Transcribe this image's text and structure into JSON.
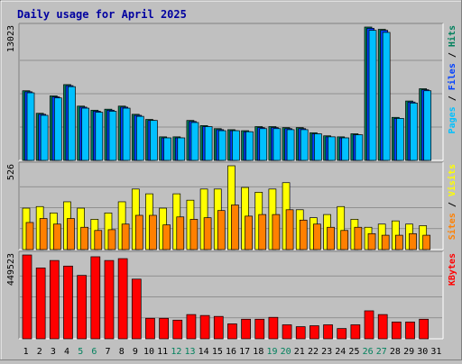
{
  "title": "Daily usage for April 2025",
  "colors": {
    "background": "#c0c0c0",
    "plot_background": "#c0c0c0",
    "title": "#0000a0",
    "hits": "#00805c",
    "files": "#0040ff",
    "pages": "#00c0ff",
    "visits": "#ffff00",
    "sites": "#ff8000",
    "kbytes": "#ff0000",
    "weekend": "#00805c",
    "weekday": "#000000"
  },
  "chart_data": {
    "type": "bar",
    "title": "Daily usage for April 2025",
    "categories": [
      "1",
      "2",
      "3",
      "4",
      "5",
      "6",
      "7",
      "8",
      "9",
      "10",
      "11",
      "12",
      "13",
      "14",
      "15",
      "16",
      "17",
      "18",
      "19",
      "20",
      "21",
      "22",
      "23",
      "24",
      "25",
      "26",
      "27",
      "28",
      "29",
      "30",
      "31"
    ],
    "weekend_days": [
      5,
      6,
      12,
      13,
      19,
      20,
      26,
      27
    ],
    "panels": [
      {
        "name": "hits-files-pages",
        "max_label": "13023",
        "ymax": 13023,
        "axis_label_parts": [
          {
            "text": "Pages",
            "color": "#00c0ff"
          },
          {
            "text": " / ",
            "color": "#000000"
          },
          {
            "text": "Files",
            "color": "#0040ff"
          },
          {
            "text": " / ",
            "color": "#000000"
          },
          {
            "text": "Hits",
            "color": "#00805c"
          }
        ],
        "series": [
          {
            "name": "Hits",
            "color": "#00805c",
            "values": [
              6800,
              4600,
              6300,
              7400,
              5300,
              4900,
              5000,
              5300,
              4500,
              4000,
              2300,
              2300,
              3900,
              3400,
              3100,
              3000,
              2900,
              3300,
              3300,
              3200,
              3200,
              2700,
              2400,
              2300,
              2600,
              13023,
              12800,
              4200,
              5800,
              7000,
              0
            ]
          },
          {
            "name": "Files",
            "color": "#0040ff",
            "values": [
              6700,
              4500,
              6200,
              7300,
              5200,
              4800,
              4900,
              5200,
              4400,
              3900,
              2200,
              2200,
              3800,
              3300,
              3000,
              2900,
              2800,
              3200,
              3200,
              3100,
              3100,
              2600,
              2300,
              2200,
              2500,
              12900,
              12700,
              4100,
              5700,
              6900,
              0
            ]
          },
          {
            "name": "Pages",
            "color": "#00c0ff",
            "values": [
              6600,
              4400,
              6100,
              7200,
              5100,
              4700,
              4800,
              5100,
              4300,
              3900,
              2200,
              2200,
              3700,
              3300,
              2900,
              2900,
              2800,
              3100,
              3100,
              3000,
              3000,
              2600,
              2300,
              2200,
              2500,
              12700,
              12500,
              4100,
              5600,
              6800,
              0
            ]
          }
        ]
      },
      {
        "name": "visits-sites",
        "max_label": "526",
        "ymax": 526,
        "axis_label_parts": [
          {
            "text": "Sites",
            "color": "#ff8000"
          },
          {
            "text": " / ",
            "color": "#000000"
          },
          {
            "text": "Visits",
            "color": "#ffff00"
          }
        ],
        "series": [
          {
            "name": "Visits",
            "color": "#ffff00",
            "values": [
              260,
              270,
              230,
              300,
              260,
              190,
              230,
              300,
              380,
              350,
              260,
              350,
              310,
              380,
              380,
              526,
              390,
              360,
              380,
              420,
              250,
              200,
              220,
              270,
              190,
              140,
              160,
              180,
              160,
              150,
              0
            ]
          },
          {
            "name": "Sites",
            "color": "#ff8000",
            "values": [
              170,
              195,
              160,
              195,
              140,
              120,
              125,
              160,
              215,
              215,
              155,
              205,
              190,
              200,
              245,
              280,
              210,
              220,
              220,
              250,
              185,
              160,
              140,
              120,
              140,
              100,
              90,
              90,
              100,
              90,
              0
            ]
          }
        ]
      },
      {
        "name": "kbytes",
        "max_label": "449523",
        "ymax": 449523,
        "axis_label_parts": [
          {
            "text": "KBytes",
            "color": "#ff0000"
          }
        ],
        "series": [
          {
            "name": "KBytes",
            "color": "#ff0000",
            "values": [
              449523,
              380000,
              420000,
              390000,
              340000,
              440000,
              420000,
              430000,
              320000,
              110000,
              110000,
              100000,
              130000,
              125000,
              120000,
              80000,
              105000,
              105000,
              115000,
              75000,
              65000,
              70000,
              75000,
              55000,
              75000,
              150000,
              130000,
              90000,
              90000,
              105000,
              0
            ]
          }
        ]
      }
    ]
  }
}
